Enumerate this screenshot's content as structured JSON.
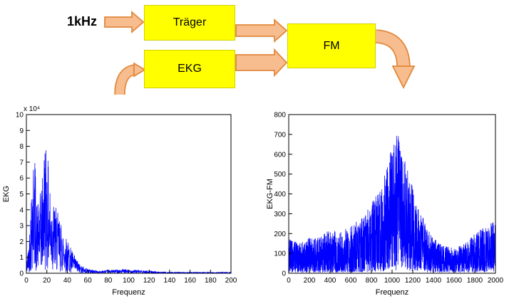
{
  "diagram": {
    "input_label": "1kHz",
    "blocks": [
      {
        "id": "traeger",
        "label": "Träger"
      },
      {
        "id": "ekg",
        "label": "EKG"
      },
      {
        "id": "fm",
        "label": "FM"
      }
    ],
    "colors": {
      "block_fill": "#ffff00",
      "block_border": "#d0d000",
      "arrow_fill": "#f7bd8e",
      "arrow_border": "#e2883c"
    }
  },
  "chart_data": [
    {
      "type": "line",
      "title": "",
      "xlabel": "Frequenz",
      "ylabel": "EKG",
      "y_scale_label": "x 10⁴",
      "xlim": [
        0,
        200
      ],
      "ylim": [
        0,
        10
      ],
      "xticks": [
        0,
        20,
        40,
        60,
        80,
        100,
        120,
        140,
        160,
        180,
        200
      ],
      "yticks": [
        0,
        1,
        2,
        3,
        4,
        5,
        6,
        7,
        8,
        9,
        10
      ],
      "line_color": "#0000ff",
      "seed": 42,
      "n_points": 1300,
      "envelope": [
        [
          0,
          0.8
        ],
        [
          2,
          1.6
        ],
        [
          4,
          4.0
        ],
        [
          6,
          7.2
        ],
        [
          8,
          7.9
        ],
        [
          10,
          4.6
        ],
        [
          12,
          4.2
        ],
        [
          14,
          5.2
        ],
        [
          16,
          6.2
        ],
        [
          18,
          8.7
        ],
        [
          20,
          8.2
        ],
        [
          22,
          6.0
        ],
        [
          25,
          4.8
        ],
        [
          28,
          4.3
        ],
        [
          32,
          3.5
        ],
        [
          36,
          2.7
        ],
        [
          40,
          2.1
        ],
        [
          44,
          1.5
        ],
        [
          48,
          1.0
        ],
        [
          52,
          0.6
        ],
        [
          56,
          0.4
        ],
        [
          60,
          0.28
        ],
        [
          70,
          0.16
        ],
        [
          80,
          0.2
        ],
        [
          90,
          0.24
        ],
        [
          100,
          0.24
        ],
        [
          110,
          0.2
        ],
        [
          120,
          0.16
        ],
        [
          130,
          0.09
        ],
        [
          140,
          0.07
        ],
        [
          160,
          0.06
        ],
        [
          180,
          0.06
        ],
        [
          200,
          0.07
        ]
      ]
    },
    {
      "type": "line",
      "title": "",
      "xlabel": "Frequenz",
      "ylabel": "EKG-FM",
      "xlim": [
        0,
        2000
      ],
      "ylim": [
        0,
        800
      ],
      "xticks": [
        0,
        200,
        400,
        600,
        800,
        1000,
        1200,
        1400,
        1600,
        1800,
        2000
      ],
      "yticks": [
        0,
        100,
        200,
        300,
        400,
        500,
        600,
        700,
        800
      ],
      "line_color": "#0000ff",
      "seed": 1234,
      "n_points": 2400,
      "envelope": [
        [
          0,
          170
        ],
        [
          100,
          150
        ],
        [
          200,
          175
        ],
        [
          300,
          185
        ],
        [
          400,
          215
        ],
        [
          500,
          215
        ],
        [
          600,
          235
        ],
        [
          700,
          275
        ],
        [
          800,
          345
        ],
        [
          850,
          390
        ],
        [
          900,
          440
        ],
        [
          950,
          530
        ],
        [
          1000,
          630
        ],
        [
          1040,
          710
        ],
        [
          1080,
          650
        ],
        [
          1120,
          570
        ],
        [
          1160,
          490
        ],
        [
          1200,
          425
        ],
        [
          1250,
          335
        ],
        [
          1300,
          275
        ],
        [
          1350,
          215
        ],
        [
          1400,
          175
        ],
        [
          1500,
          135
        ],
        [
          1600,
          125
        ],
        [
          1700,
          145
        ],
        [
          1800,
          195
        ],
        [
          1900,
          235
        ],
        [
          2000,
          265
        ]
      ]
    }
  ]
}
